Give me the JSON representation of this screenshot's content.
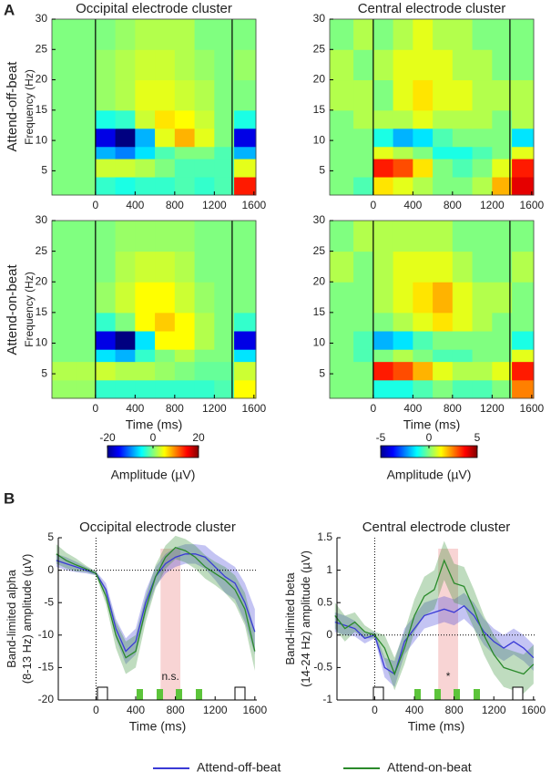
{
  "panel_labels": [
    "A",
    "B"
  ],
  "row_labels": [
    "Attend-off-beat",
    "Attend-on-beat"
  ],
  "chart_data": [
    {
      "type": "heatmap",
      "title": "Occipital electrode cluster",
      "ylabel": "Frequency (Hz)",
      "colormap": "jet",
      "xlim": [
        -440,
        1620
      ],
      "ylim": [
        1,
        30
      ],
      "xticks": [
        0,
        400,
        800,
        1200,
        1600
      ],
      "yticks": [
        5,
        10,
        15,
        20,
        25,
        30
      ],
      "vlines": [
        0,
        1380
      ],
      "zlim": [
        -20,
        20
      ],
      "x_bins": [
        -440,
        -200,
        0,
        200,
        400,
        600,
        800,
        1000,
        1200,
        1400,
        1620
      ],
      "y_bins": [
        1,
        4,
        7,
        9,
        12,
        15,
        20,
        25,
        30
      ],
      "z": [
        [
          0,
          0,
          -3,
          -4,
          -3,
          -3,
          -2,
          -3,
          -2,
          14
        ],
        [
          0,
          0,
          3,
          3,
          2,
          0,
          -2,
          -2,
          -2,
          4
        ],
        [
          0,
          0,
          -8,
          -10,
          -6,
          -2,
          0,
          0,
          -2,
          -8
        ],
        [
          0,
          0,
          -16,
          -20,
          -8,
          4,
          8,
          4,
          0,
          -16
        ],
        [
          0,
          0,
          -4,
          -3,
          3,
          6,
          5,
          3,
          0,
          -4
        ],
        [
          0,
          0,
          1,
          2,
          4,
          4,
          3,
          2,
          0,
          0
        ],
        [
          0,
          0,
          1,
          2,
          3,
          3,
          2,
          1,
          0,
          1
        ],
        [
          0,
          0,
          0,
          1,
          2,
          2,
          2,
          0,
          0,
          0
        ]
      ]
    },
    {
      "type": "heatmap",
      "ylabel": "Frequency (Hz)",
      "xlabel": "Time (ms)",
      "colormap": "jet",
      "xlim": [
        -440,
        1620
      ],
      "ylim": [
        1,
        30
      ],
      "xticks": [
        0,
        400,
        800,
        1200,
        1600
      ],
      "yticks": [
        5,
        10,
        15,
        20,
        25,
        30
      ],
      "vlines": [
        0,
        1380
      ],
      "zlim": [
        -20,
        20
      ],
      "zticks": [
        -20,
        0,
        20
      ],
      "colorbar_label": "Amplitude (µV)",
      "x_bins": [
        -440,
        -200,
        0,
        200,
        400,
        600,
        800,
        1000,
        1200,
        1400,
        1620
      ],
      "y_bins": [
        1,
        4,
        7,
        9,
        12,
        15,
        20,
        25,
        30
      ],
      "z": [
        [
          1,
          1,
          -3,
          -3,
          -3,
          -3,
          -3,
          -3,
          -2,
          5
        ],
        [
          2,
          2,
          3,
          2,
          2,
          1,
          0,
          -1,
          -1,
          3
        ],
        [
          0,
          0,
          -6,
          -8,
          -3,
          0,
          2,
          0,
          0,
          -6
        ],
        [
          0,
          0,
          -16,
          -20,
          -6,
          5,
          5,
          2,
          0,
          -16
        ],
        [
          0,
          0,
          -3,
          0,
          5,
          7,
          5,
          2,
          0,
          -3
        ],
        [
          0,
          0,
          1,
          3,
          5,
          5,
          3,
          1,
          0,
          0
        ],
        [
          0,
          0,
          0,
          2,
          3,
          3,
          2,
          0,
          0,
          0
        ],
        [
          0,
          0,
          0,
          1,
          1,
          1,
          1,
          0,
          0,
          0
        ]
      ]
    },
    {
      "type": "heatmap",
      "title": "Central electrode cluster",
      "colormap": "jet",
      "xlim": [
        -440,
        1620
      ],
      "ylim": [
        1,
        30
      ],
      "xticks": [
        0,
        400,
        800,
        1200,
        1600
      ],
      "yticks": [
        5,
        10,
        15,
        20,
        25,
        30
      ],
      "vlines": [
        0,
        1380
      ],
      "zlim": [
        -5,
        5
      ],
      "x_bins": [
        -440,
        -200,
        0,
        200,
        400,
        600,
        800,
        1000,
        1200,
        1400,
        1620
      ],
      "y_bins": [
        1,
        4,
        7,
        9,
        12,
        15,
        20,
        25,
        30
      ],
      "z": [
        [
          0,
          -0.5,
          1.5,
          1,
          0.5,
          0,
          0,
          0.5,
          2,
          4
        ],
        [
          0,
          0,
          3.5,
          3,
          1.5,
          0,
          -0.5,
          0,
          1,
          3.5
        ],
        [
          0,
          0,
          1,
          0.5,
          0,
          -1,
          -1,
          -0.5,
          0,
          1
        ],
        [
          0,
          0,
          -1,
          -2,
          -1.5,
          -0.5,
          0,
          0,
          0,
          -1.5
        ],
        [
          0,
          0.5,
          0.5,
          0.5,
          1,
          0.5,
          0.5,
          0.5,
          0,
          0.5
        ],
        [
          0.5,
          0.5,
          0,
          1,
          1.5,
          1,
          1,
          0.5,
          0.5,
          0.5
        ],
        [
          0.5,
          0,
          0.5,
          1,
          1,
          1,
          0.5,
          0.5,
          0,
          0
        ],
        [
          0,
          0.5,
          0,
          0.5,
          1,
          0.5,
          0.5,
          0,
          0,
          0
        ]
      ]
    },
    {
      "type": "heatmap",
      "xlabel": "Time (ms)",
      "colormap": "jet",
      "xlim": [
        -440,
        1620
      ],
      "ylim": [
        1,
        30
      ],
      "xticks": [
        0,
        400,
        800,
        1200,
        1600
      ],
      "yticks": [
        5,
        10,
        15,
        20,
        25,
        30
      ],
      "vlines": [
        0,
        1380
      ],
      "zlim": [
        -5,
        5
      ],
      "zticks": [
        -5,
        0,
        5
      ],
      "colorbar_label": "Amplitude (µV)",
      "x_bins": [
        -440,
        -200,
        0,
        200,
        400,
        600,
        800,
        1000,
        1200,
        1400,
        1620
      ],
      "y_bins": [
        1,
        4,
        7,
        9,
        12,
        15,
        20,
        25,
        30
      ],
      "z": [
        [
          0,
          0,
          -1,
          -1,
          -0.5,
          0,
          -0.5,
          -0.5,
          0,
          2.5
        ],
        [
          0,
          0,
          3.5,
          3,
          2,
          1,
          0.5,
          0.5,
          1,
          3.5
        ],
        [
          0,
          -0.5,
          0,
          0.5,
          0,
          -0.5,
          -0.5,
          0,
          0,
          1
        ],
        [
          0,
          -0.5,
          -2,
          -1.5,
          -0.5,
          0,
          0,
          0,
          0,
          -1
        ],
        [
          0,
          0,
          0,
          0.5,
          1,
          1.5,
          1,
          0.5,
          0,
          0
        ],
        [
          0,
          0,
          0.5,
          1,
          1.5,
          2,
          1,
          0.5,
          0.5,
          0
        ],
        [
          0.5,
          0,
          0.5,
          1,
          1,
          1,
          0.5,
          0,
          0,
          0.5
        ],
        [
          0,
          0.5,
          0.5,
          0.5,
          0.5,
          0.5,
          0,
          0,
          0,
          0
        ]
      ]
    },
    {
      "type": "line",
      "title": "Occipital electrode cluster",
      "xlabel": "Time (ms)",
      "ylabel": [
        "Band-limited alpha",
        "(8-13 Hz) amplitude (µV)"
      ],
      "xlim": [
        -380,
        1620
      ],
      "ylim": [
        -20,
        5
      ],
      "xticks": [
        0,
        400,
        800,
        1200,
        1600
      ],
      "yticks": [
        5,
        0,
        -5,
        -10,
        -15,
        -20
      ],
      "vlines": [
        0
      ],
      "hlines": [
        0
      ],
      "highlight": [
        650,
        850
      ],
      "highlight_label": "n.s.",
      "x": [
        -400,
        -300,
        -200,
        -100,
        0,
        100,
        200,
        300,
        400,
        500,
        600,
        700,
        800,
        900,
        1000,
        1100,
        1200,
        1300,
        1400,
        1500,
        1600
      ],
      "series": [
        {
          "name": "Attend-off-beat",
          "color": "#3a3ad6",
          "values": [
            1.5,
            1,
            0.5,
            0,
            -0.5,
            -3,
            -9,
            -12.5,
            -11,
            -5,
            -1,
            1,
            2,
            2.5,
            2.5,
            2,
            0.5,
            -1,
            -2,
            -5,
            -9.5
          ],
          "error": [
            1,
            1,
            0.8,
            0.5,
            0.3,
            1,
            1.5,
            2,
            2,
            1.8,
            1.5,
            1.5,
            1.5,
            1.5,
            1.5,
            1.8,
            2,
            2.5,
            2.5,
            3,
            3.5
          ]
        },
        {
          "name": "Attend-on-beat",
          "color": "#2a8a2a",
          "values": [
            2.5,
            1.5,
            0.8,
            0.2,
            -0.5,
            -4,
            -10,
            -13.5,
            -12.5,
            -6,
            -1,
            2,
            3.5,
            3,
            2,
            0.5,
            -0.5,
            -1.5,
            -3,
            -6,
            -12.5
          ],
          "error": [
            1.5,
            1.2,
            1,
            0.5,
            0.3,
            1.2,
            2,
            2.5,
            2.5,
            2,
            1.8,
            1.8,
            1.8,
            1.8,
            1.8,
            1.8,
            1.8,
            2,
            2.2,
            2.5,
            3
          ]
        }
      ]
    },
    {
      "type": "line",
      "title": "Central electrode cluster",
      "xlabel": "Time (ms)",
      "ylabel": [
        "Band-limited beta",
        "(14-24 Hz) amplitude (µV)"
      ],
      "xlim": [
        -380,
        1620
      ],
      "ylim": [
        -1,
        1.5
      ],
      "xticks": [
        0,
        400,
        800,
        1200,
        1600
      ],
      "yticks": [
        1.5,
        1,
        0.5,
        0,
        -0.5,
        -1
      ],
      "vlines": [
        0
      ],
      "hlines": [
        0
      ],
      "highlight": [
        640,
        840
      ],
      "highlight_label": "*",
      "x": [
        -400,
        -300,
        -200,
        -100,
        0,
        100,
        200,
        300,
        400,
        500,
        600,
        700,
        800,
        900,
        1000,
        1100,
        1200,
        1300,
        1400,
        1500,
        1600
      ],
      "series": [
        {
          "name": "Attend-off-beat",
          "color": "#3a3ad6",
          "values": [
            0.2,
            0.15,
            0.1,
            -0.05,
            0,
            -0.5,
            -0.6,
            -0.1,
            0.1,
            0.3,
            0.35,
            0.4,
            0.35,
            0.45,
            0.3,
            0.05,
            -0.1,
            -0.2,
            -0.1,
            -0.2,
            -0.35
          ],
          "error": [
            0.15,
            0.15,
            0.12,
            0.08,
            0.05,
            0.15,
            0.2,
            0.2,
            0.2,
            0.2,
            0.2,
            0.2,
            0.2,
            0.2,
            0.2,
            0.2,
            0.2,
            0.2,
            0.2,
            0.2,
            0.2
          ]
        },
        {
          "name": "Attend-on-beat",
          "color": "#2a8a2a",
          "values": [
            0.3,
            0.1,
            0.2,
            0.05,
            0,
            -0.2,
            -0.6,
            -0.2,
            0.3,
            0.6,
            0.7,
            1.15,
            0.8,
            0.75,
            0.4,
            0,
            -0.3,
            -0.5,
            -0.55,
            -0.6,
            -0.45
          ],
          "error": [
            0.2,
            0.2,
            0.15,
            0.1,
            0.05,
            0.2,
            0.25,
            0.25,
            0.25,
            0.3,
            0.3,
            0.3,
            0.3,
            0.3,
            0.3,
            0.3,
            0.3,
            0.3,
            0.3,
            0.3,
            0.3
          ]
        }
      ]
    }
  ]
}
